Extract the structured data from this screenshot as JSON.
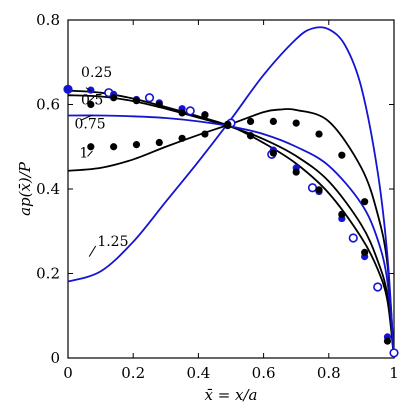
{
  "chart_data": {
    "type": "line",
    "xlabel": "x̄ = x/a",
    "ylabel": "ap(x̄)/P",
    "xlim": [
      0,
      1
    ],
    "ylim": [
      0,
      0.8
    ],
    "xticks": [
      "0",
      "0.2",
      "0.4",
      "0.6",
      "0.8",
      "1"
    ],
    "yticks": [
      "0",
      "0.2",
      "0.4",
      "0.6",
      "0.8"
    ],
    "grid": false,
    "colors": {
      "black": "#000000",
      "blue": "#1414d2"
    },
    "series": [
      {
        "name": "0.25",
        "kind": "line",
        "color": "#000000",
        "x": [
          0,
          0.1,
          0.2,
          0.3,
          0.4,
          0.5,
          0.6,
          0.7,
          0.8,
          0.9,
          0.95,
          0.98,
          1.0
        ],
        "y": [
          0.633,
          0.628,
          0.614,
          0.594,
          0.572,
          0.548,
          0.509,
          0.46,
          0.39,
          0.285,
          0.21,
          0.135,
          0.0
        ]
      },
      {
        "name": "0.5",
        "kind": "line",
        "color": "#000000",
        "x": [
          0,
          0.1,
          0.2,
          0.3,
          0.4,
          0.5,
          0.6,
          0.7,
          0.8,
          0.9,
          0.95,
          0.98,
          1.0
        ],
        "y": [
          0.622,
          0.619,
          0.608,
          0.59,
          0.569,
          0.547,
          0.518,
          0.478,
          0.418,
          0.315,
          0.23,
          0.148,
          0.0
        ]
      },
      {
        "name": "0.75",
        "kind": "line",
        "color": "#1414d2",
        "x": [
          0,
          0.1,
          0.2,
          0.3,
          0.4,
          0.5,
          0.6,
          0.7,
          0.8,
          0.9,
          0.95,
          0.98,
          1.0
        ],
        "y": [
          0.574,
          0.574,
          0.572,
          0.568,
          0.56,
          0.548,
          0.53,
          0.5,
          0.455,
          0.365,
          0.28,
          0.18,
          0.0
        ]
      },
      {
        "name": "1",
        "kind": "line",
        "color": "#000000",
        "x": [
          0,
          0.1,
          0.2,
          0.3,
          0.4,
          0.5,
          0.6,
          0.65,
          0.7,
          0.8,
          0.9,
          0.95,
          0.98,
          1.0
        ],
        "y": [
          0.443,
          0.45,
          0.47,
          0.5,
          0.528,
          0.554,
          0.582,
          0.588,
          0.587,
          0.56,
          0.45,
          0.34,
          0.22,
          0.0
        ]
      },
      {
        "name": "1.25",
        "kind": "line",
        "color": "#1414d2",
        "x": [
          0,
          0.1,
          0.2,
          0.3,
          0.4,
          0.5,
          0.6,
          0.7,
          0.75,
          0.8,
          0.85,
          0.9,
          0.95,
          0.98,
          1.0
        ],
        "y": [
          0.181,
          0.205,
          0.275,
          0.37,
          0.465,
          0.565,
          0.67,
          0.755,
          0.78,
          0.778,
          0.74,
          0.64,
          0.44,
          0.24,
          0.0
        ]
      },
      {
        "kind": "scatter-open",
        "color": "#1414d2",
        "x": [
          0.0,
          0.125,
          0.25,
          0.375,
          0.5,
          0.625,
          0.75,
          0.875,
          0.95,
          1.0
        ],
        "y": [
          0.636,
          0.628,
          0.616,
          0.585,
          0.556,
          0.482,
          0.403,
          0.284,
          0.168,
          0.012
        ]
      },
      {
        "kind": "scatter-filled",
        "color": "#1414d2",
        "x": [
          0.0,
          0.07,
          0.14,
          0.21,
          0.28,
          0.35,
          0.42,
          0.49,
          0.56,
          0.63,
          0.7,
          0.77,
          0.84,
          0.91,
          0.98
        ],
        "y": [
          0.636,
          0.634,
          0.624,
          0.612,
          0.604,
          0.59,
          0.576,
          0.553,
          0.526,
          0.492,
          0.45,
          0.394,
          0.33,
          0.24,
          0.05
        ]
      },
      {
        "kind": "scatter-filled",
        "color": "#000000",
        "x": [
          0.07,
          0.14,
          0.21,
          0.28,
          0.35,
          0.42,
          0.49,
          0.56,
          0.63,
          0.7,
          0.77,
          0.84,
          0.91,
          0.98
        ],
        "y": [
          0.6,
          0.616,
          0.609,
          0.6,
          0.58,
          0.575,
          0.553,
          0.526,
          0.485,
          0.44,
          0.398,
          0.34,
          0.25,
          0.04
        ]
      },
      {
        "kind": "scatter-filled",
        "color": "#000000",
        "x": [
          0.07,
          0.14,
          0.21,
          0.28,
          0.35,
          0.42,
          0.49,
          0.56,
          0.63,
          0.7,
          0.77,
          0.84,
          0.91
        ],
        "y": [
          0.5,
          0.5,
          0.505,
          0.51,
          0.52,
          0.53,
          0.55,
          0.56,
          0.56,
          0.556,
          0.53,
          0.48,
          0.37
        ]
      }
    ],
    "annotations": [
      {
        "text": "0.25",
        "lx": 0.04,
        "ly": 0.665,
        "ax": 0.055,
        "ay": 0.64,
        "tx": 0.07,
        "ty": 0.632
      },
      {
        "text": "0.5",
        "lx": 0.04,
        "ly": 0.6,
        "ax": 0.06,
        "ay": 0.604,
        "tx": 0.08,
        "ty": 0.618
      },
      {
        "text": "0.75",
        "lx": 0.02,
        "ly": 0.543,
        "ax": 0.04,
        "ay": 0.563,
        "tx": 0.075,
        "ty": 0.575
      },
      {
        "text": "1",
        "lx": 0.035,
        "ly": 0.475,
        "ax": 0.06,
        "ay": 0.477,
        "tx": 0.075,
        "ty": 0.49
      },
      {
        "text": "1.25",
        "lx": 0.09,
        "ly": 0.265,
        "ax": 0.085,
        "ay": 0.265,
        "tx": 0.065,
        "ty": 0.24
      }
    ]
  }
}
